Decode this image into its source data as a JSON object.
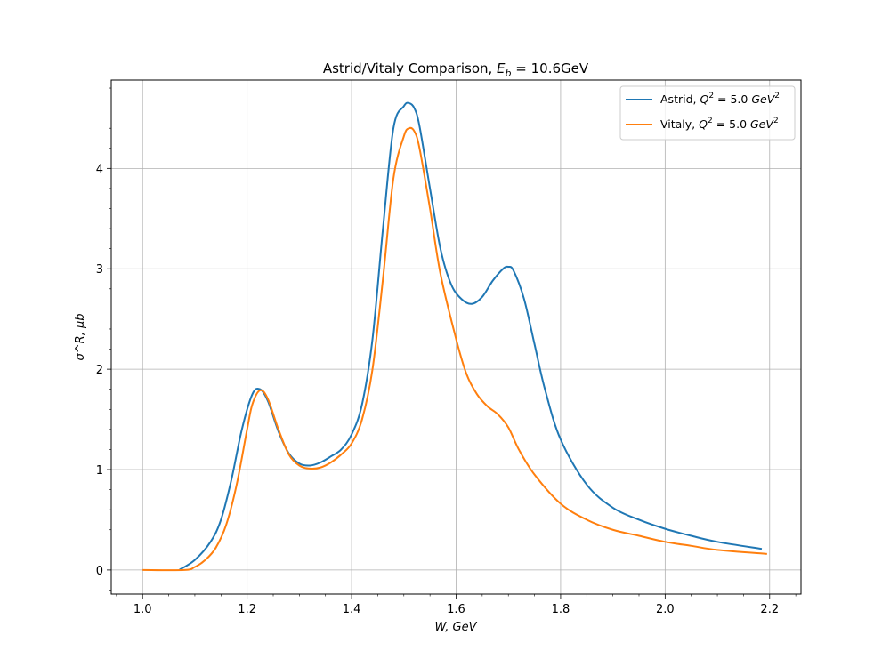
{
  "chart_data": {
    "type": "line",
    "title": "Astrid/Vitaly Comparison, E_b = 10.6GeV",
    "title_parts": {
      "prefix": "Astrid/Vitaly Comparison, ",
      "symbol": "E",
      "subscript": "b",
      "suffix": " = 10.6GeV"
    },
    "xlabel": "W, GeV",
    "ylabel": "σ^R, μb",
    "xlim": [
      0.94,
      2.26
    ],
    "ylim": [
      -0.24,
      4.88
    ],
    "x_ticks": [
      1.0,
      1.2,
      1.4,
      1.6,
      1.8,
      2.0,
      2.2
    ],
    "x_tick_labels": [
      "1.0",
      "1.2",
      "1.4",
      "1.6",
      "1.8",
      "2.0",
      "2.2"
    ],
    "y_ticks": [
      0,
      1,
      2,
      3,
      4
    ],
    "y_tick_labels": [
      "0",
      "1",
      "2",
      "3",
      "4"
    ],
    "grid": true,
    "legend_position": "top-right",
    "series": [
      {
        "name": "Astrid, Q^2 = 5.0 GeV^2",
        "legend_parts": {
          "prefix": "Astrid, ",
          "sym": "Q",
          "sup1": "2",
          "mid": " = 5.0 ",
          "unit": "GeV",
          "sup2": "2"
        },
        "color": "#1f77b4",
        "x": [
          1.07,
          1.1,
          1.13,
          1.15,
          1.17,
          1.19,
          1.21,
          1.225,
          1.24,
          1.26,
          1.28,
          1.3,
          1.32,
          1.34,
          1.36,
          1.38,
          1.4,
          1.42,
          1.44,
          1.46,
          1.48,
          1.5,
          1.51,
          1.52,
          1.53,
          1.55,
          1.57,
          1.59,
          1.61,
          1.63,
          1.65,
          1.67,
          1.69,
          1.7,
          1.71,
          1.73,
          1.75,
          1.77,
          1.8,
          1.85,
          1.9,
          1.95,
          2.0,
          2.05,
          2.1,
          2.185
        ],
        "y": [
          0.0,
          0.1,
          0.28,
          0.5,
          0.9,
          1.4,
          1.75,
          1.8,
          1.68,
          1.38,
          1.16,
          1.06,
          1.04,
          1.07,
          1.13,
          1.2,
          1.35,
          1.65,
          2.3,
          3.4,
          4.4,
          4.62,
          4.65,
          4.6,
          4.42,
          3.8,
          3.2,
          2.85,
          2.7,
          2.65,
          2.72,
          2.88,
          3.0,
          3.02,
          2.98,
          2.7,
          2.25,
          1.8,
          1.3,
          0.85,
          0.62,
          0.5,
          0.41,
          0.34,
          0.28,
          0.21
        ]
      },
      {
        "name": "Vitaly, Q^2 = 5.0 GeV^2",
        "legend_parts": {
          "prefix": "Vitaly, ",
          "sym": "Q",
          "sup1": "2",
          "mid": " = 5.0 ",
          "unit": "GeV",
          "sup2": "2"
        },
        "color": "#ff7f0e",
        "x": [
          1.0,
          1.08,
          1.1,
          1.12,
          1.14,
          1.16,
          1.18,
          1.2,
          1.21,
          1.225,
          1.24,
          1.26,
          1.28,
          1.3,
          1.32,
          1.34,
          1.36,
          1.38,
          1.4,
          1.42,
          1.44,
          1.46,
          1.48,
          1.5,
          1.51,
          1.52,
          1.53,
          1.55,
          1.57,
          1.6,
          1.62,
          1.64,
          1.66,
          1.68,
          1.7,
          1.72,
          1.75,
          1.8,
          1.85,
          1.9,
          1.95,
          2.0,
          2.05,
          2.1,
          2.195
        ],
        "y": [
          0.0,
          0.0,
          0.03,
          0.1,
          0.22,
          0.45,
          0.85,
          1.4,
          1.65,
          1.79,
          1.7,
          1.4,
          1.15,
          1.04,
          1.01,
          1.02,
          1.07,
          1.15,
          1.26,
          1.5,
          2.0,
          2.9,
          3.9,
          4.32,
          4.4,
          4.37,
          4.2,
          3.6,
          2.95,
          2.3,
          1.95,
          1.75,
          1.63,
          1.55,
          1.42,
          1.2,
          0.95,
          0.66,
          0.5,
          0.4,
          0.34,
          0.28,
          0.24,
          0.2,
          0.16
        ]
      }
    ]
  }
}
